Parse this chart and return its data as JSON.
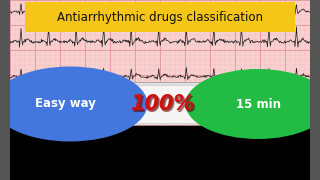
{
  "title": "Antiarrhythmic drugs classification",
  "title_bg": "#F5C518",
  "title_color": "#111111",
  "bg_ecg_color": "#f8d0d0",
  "grid_major_color": "#e09090",
  "grid_minor_color": "#f0b8b8",
  "ecg_color": "#1a1a1a",
  "left_circle_color": "#4477DD",
  "right_circle_color": "#22BB44",
  "left_text": "Easy way",
  "right_text": "15 min",
  "text_color": "#ffffff",
  "percent_color": "#CC1111",
  "side_bar_color": "#555555",
  "bottom_white_color": "#e8e8e8",
  "figsize": [
    3.2,
    1.8
  ],
  "dpi": 100
}
